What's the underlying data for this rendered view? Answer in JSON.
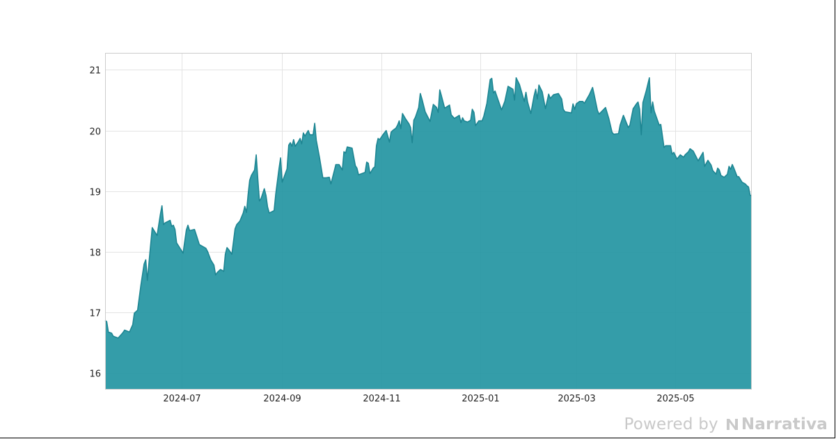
{
  "chart_data": {
    "type": "area",
    "title": "",
    "xlabel": "",
    "ylabel": "",
    "x_range": [
      "2024-05-15",
      "2025-06-17"
    ],
    "ylim": [
      15.73,
      21.28
    ],
    "x_ticks": [
      {
        "date": "2024-07-01",
        "label": "2024-07"
      },
      {
        "date": "2024-09-01",
        "label": "2024-09"
      },
      {
        "date": "2024-11-01",
        "label": "2024-11"
      },
      {
        "date": "2025-01-01",
        "label": "2025-01"
      },
      {
        "date": "2025-03-01",
        "label": "2025-03"
      },
      {
        "date": "2025-05-01",
        "label": "2025-05"
      }
    ],
    "y_ticks": [
      16,
      17,
      18,
      19,
      20,
      21
    ],
    "grid": true,
    "legend": "none",
    "colors": {
      "fill": "#2596a3",
      "line": "#1d8592"
    },
    "series": [
      {
        "points": [
          [
            "2024-05-15",
            16.87
          ],
          [
            "2024-05-16",
            16.85
          ],
          [
            "2024-05-17",
            16.68
          ],
          [
            "2024-05-19",
            16.66
          ],
          [
            "2024-05-20",
            16.61
          ],
          [
            "2024-05-23",
            16.58
          ],
          [
            "2024-05-26",
            16.67
          ],
          [
            "2024-05-27",
            16.71
          ],
          [
            "2024-05-28",
            16.7
          ],
          [
            "2024-05-30",
            16.68
          ],
          [
            "2024-06-01",
            16.8
          ],
          [
            "2024-06-02",
            16.99
          ],
          [
            "2024-06-04",
            17.04
          ],
          [
            "2024-06-06",
            17.45
          ],
          [
            "2024-06-08",
            17.8
          ],
          [
            "2024-06-09",
            17.87
          ],
          [
            "2024-06-10",
            17.53
          ],
          [
            "2024-06-11",
            17.82
          ],
          [
            "2024-06-13",
            18.4
          ],
          [
            "2024-06-16",
            18.27
          ],
          [
            "2024-06-18",
            18.62
          ],
          [
            "2024-06-19",
            18.76
          ],
          [
            "2024-06-20",
            18.45
          ],
          [
            "2024-06-21",
            18.48
          ],
          [
            "2024-06-24",
            18.52
          ],
          [
            "2024-06-25",
            18.42
          ],
          [
            "2024-06-26",
            18.44
          ],
          [
            "2024-06-27",
            18.37
          ],
          [
            "2024-06-28",
            18.15
          ],
          [
            "2024-07-02",
            17.98
          ],
          [
            "2024-07-04",
            18.36
          ],
          [
            "2024-07-05",
            18.44
          ],
          [
            "2024-07-06",
            18.35
          ],
          [
            "2024-07-09",
            18.37
          ],
          [
            "2024-07-10",
            18.29
          ],
          [
            "2024-07-12",
            18.12
          ],
          [
            "2024-07-14",
            18.09
          ],
          [
            "2024-07-16",
            18.06
          ],
          [
            "2024-07-17",
            18.01
          ],
          [
            "2024-07-19",
            17.87
          ],
          [
            "2024-07-21",
            17.78
          ],
          [
            "2024-07-22",
            17.62
          ],
          [
            "2024-07-23",
            17.66
          ],
          [
            "2024-07-25",
            17.71
          ],
          [
            "2024-07-27",
            17.68
          ],
          [
            "2024-07-28",
            17.96
          ],
          [
            "2024-07-29",
            18.07
          ],
          [
            "2024-07-30",
            18.04
          ],
          [
            "2024-08-01",
            17.96
          ],
          [
            "2024-08-03",
            18.38
          ],
          [
            "2024-08-04",
            18.45
          ],
          [
            "2024-08-06",
            18.51
          ],
          [
            "2024-08-08",
            18.64
          ],
          [
            "2024-08-09",
            18.75
          ],
          [
            "2024-08-10",
            18.65
          ],
          [
            "2024-08-11",
            18.94
          ],
          [
            "2024-08-12",
            19.18
          ],
          [
            "2024-08-13",
            19.26
          ],
          [
            "2024-08-15",
            19.35
          ],
          [
            "2024-08-16",
            19.6
          ],
          [
            "2024-08-17",
            19.2
          ],
          [
            "2024-08-18",
            18.84
          ],
          [
            "2024-08-19",
            18.88
          ],
          [
            "2024-08-20",
            18.96
          ],
          [
            "2024-08-21",
            19.04
          ],
          [
            "2024-08-22",
            18.93
          ],
          [
            "2024-08-23",
            18.74
          ],
          [
            "2024-08-24",
            18.64
          ],
          [
            "2024-08-27",
            18.68
          ],
          [
            "2024-08-28",
            18.95
          ],
          [
            "2024-08-30",
            19.37
          ],
          [
            "2024-08-31",
            19.55
          ],
          [
            "2024-09-01",
            19.15
          ],
          [
            "2024-09-04",
            19.37
          ],
          [
            "2024-09-05",
            19.76
          ],
          [
            "2024-09-06",
            19.8
          ],
          [
            "2024-09-07",
            19.74
          ],
          [
            "2024-09-08",
            19.85
          ],
          [
            "2024-09-09",
            19.74
          ],
          [
            "2024-09-11",
            19.82
          ],
          [
            "2024-09-12",
            19.87
          ],
          [
            "2024-09-13",
            19.78
          ],
          [
            "2024-09-14",
            19.96
          ],
          [
            "2024-09-15",
            19.91
          ],
          [
            "2024-09-17",
            20.0
          ],
          [
            "2024-09-18",
            19.93
          ],
          [
            "2024-09-20",
            19.93
          ],
          [
            "2024-09-21",
            20.12
          ],
          [
            "2024-09-22",
            19.84
          ],
          [
            "2024-09-24",
            19.55
          ],
          [
            "2024-09-26",
            19.22
          ],
          [
            "2024-09-28",
            19.22
          ],
          [
            "2024-09-30",
            19.23
          ],
          [
            "2024-10-01",
            19.12
          ],
          [
            "2024-10-03",
            19.33
          ],
          [
            "2024-10-04",
            19.44
          ],
          [
            "2024-10-06",
            19.44
          ],
          [
            "2024-10-08",
            19.35
          ],
          [
            "2024-10-09",
            19.65
          ],
          [
            "2024-10-10",
            19.63
          ],
          [
            "2024-10-11",
            19.73
          ],
          [
            "2024-10-14",
            19.71
          ],
          [
            "2024-10-16",
            19.42
          ],
          [
            "2024-10-17",
            19.38
          ],
          [
            "2024-10-18",
            19.27
          ],
          [
            "2024-10-20",
            19.29
          ],
          [
            "2024-10-22",
            19.31
          ],
          [
            "2024-10-23",
            19.48
          ],
          [
            "2024-10-24",
            19.46
          ],
          [
            "2024-10-25",
            19.29
          ],
          [
            "2024-10-27",
            19.38
          ],
          [
            "2024-10-28",
            19.4
          ],
          [
            "2024-10-29",
            19.75
          ],
          [
            "2024-10-30",
            19.87
          ],
          [
            "2024-10-31",
            19.85
          ],
          [
            "2024-11-02",
            19.93
          ],
          [
            "2024-11-04",
            20.0
          ],
          [
            "2024-11-06",
            19.81
          ],
          [
            "2024-11-07",
            19.97
          ],
          [
            "2024-11-08",
            20.0
          ],
          [
            "2024-11-10",
            20.04
          ],
          [
            "2024-11-11",
            20.09
          ],
          [
            "2024-11-12",
            20.16
          ],
          [
            "2024-11-13",
            20.03
          ],
          [
            "2024-11-14",
            20.28
          ],
          [
            "2024-11-16",
            20.19
          ],
          [
            "2024-11-18",
            20.11
          ],
          [
            "2024-11-19",
            20.05
          ],
          [
            "2024-11-20",
            19.8
          ],
          [
            "2024-11-21",
            20.17
          ],
          [
            "2024-11-22",
            20.22
          ],
          [
            "2024-11-24",
            20.38
          ],
          [
            "2024-11-25",
            20.61
          ],
          [
            "2024-11-26",
            20.52
          ],
          [
            "2024-11-28",
            20.31
          ],
          [
            "2024-12-01",
            20.15
          ],
          [
            "2024-12-03",
            20.43
          ],
          [
            "2024-12-05",
            20.38
          ],
          [
            "2024-12-06",
            20.3
          ],
          [
            "2024-12-07",
            20.67
          ],
          [
            "2024-12-08",
            20.57
          ],
          [
            "2024-12-10",
            20.37
          ],
          [
            "2024-12-13",
            20.42
          ],
          [
            "2024-12-14",
            20.26
          ],
          [
            "2024-12-16",
            20.2
          ],
          [
            "2024-12-19",
            20.25
          ],
          [
            "2024-12-20",
            20.13
          ],
          [
            "2024-12-21",
            20.21
          ],
          [
            "2024-12-22",
            20.16
          ],
          [
            "2024-12-24",
            20.14
          ],
          [
            "2024-12-26",
            20.17
          ],
          [
            "2024-12-27",
            20.35
          ],
          [
            "2024-12-28",
            20.3
          ],
          [
            "2024-12-29",
            20.08
          ],
          [
            "2024-12-31",
            20.16
          ],
          [
            "2025-01-02",
            20.16
          ],
          [
            "2025-01-03",
            20.23
          ],
          [
            "2025-01-05",
            20.45
          ],
          [
            "2025-01-06",
            20.65
          ],
          [
            "2025-01-07",
            20.84
          ],
          [
            "2025-01-08",
            20.86
          ],
          [
            "2025-01-09",
            20.62
          ],
          [
            "2025-01-10",
            20.65
          ],
          [
            "2025-01-14",
            20.34
          ],
          [
            "2025-01-16",
            20.48
          ],
          [
            "2025-01-18",
            20.73
          ],
          [
            "2025-01-21",
            20.68
          ],
          [
            "2025-01-22",
            20.5
          ],
          [
            "2025-01-23",
            20.87
          ],
          [
            "2025-01-25",
            20.76
          ],
          [
            "2025-01-28",
            20.48
          ],
          [
            "2025-01-29",
            20.63
          ],
          [
            "2025-01-30",
            20.47
          ],
          [
            "2025-02-01",
            20.28
          ],
          [
            "2025-02-03",
            20.57
          ],
          [
            "2025-02-04",
            20.68
          ],
          [
            "2025-02-05",
            20.52
          ],
          [
            "2025-02-06",
            20.75
          ],
          [
            "2025-02-08",
            20.64
          ],
          [
            "2025-02-10",
            20.36
          ],
          [
            "2025-02-12",
            20.6
          ],
          [
            "2025-02-13",
            20.53
          ],
          [
            "2025-02-15",
            20.59
          ],
          [
            "2025-02-18",
            20.61
          ],
          [
            "2025-02-20",
            20.52
          ],
          [
            "2025-02-21",
            20.35
          ],
          [
            "2025-02-22",
            20.31
          ],
          [
            "2025-02-26",
            20.29
          ],
          [
            "2025-02-27",
            20.44
          ],
          [
            "2025-02-28",
            20.35
          ],
          [
            "2025-03-01",
            20.44
          ],
          [
            "2025-03-03",
            20.48
          ],
          [
            "2025-03-05",
            20.48
          ],
          [
            "2025-03-06",
            20.45
          ],
          [
            "2025-03-09",
            20.59
          ],
          [
            "2025-03-11",
            20.71
          ],
          [
            "2025-03-12",
            20.59
          ],
          [
            "2025-03-14",
            20.33
          ],
          [
            "2025-03-15",
            20.27
          ],
          [
            "2025-03-19",
            20.38
          ],
          [
            "2025-03-21",
            20.2
          ],
          [
            "2025-03-23",
            19.97
          ],
          [
            "2025-03-24",
            19.94
          ],
          [
            "2025-03-27",
            19.95
          ],
          [
            "2025-03-28",
            20.09
          ],
          [
            "2025-03-30",
            20.25
          ],
          [
            "2025-04-02",
            20.05
          ],
          [
            "2025-04-03",
            20.09
          ],
          [
            "2025-04-05",
            20.36
          ],
          [
            "2025-04-07",
            20.44
          ],
          [
            "2025-04-08",
            20.47
          ],
          [
            "2025-04-09",
            20.35
          ],
          [
            "2025-04-10",
            19.93
          ],
          [
            "2025-04-11",
            20.46
          ],
          [
            "2025-04-13",
            20.65
          ],
          [
            "2025-04-15",
            20.87
          ],
          [
            "2025-04-16",
            20.29
          ],
          [
            "2025-04-17",
            20.47
          ],
          [
            "2025-04-18",
            20.32
          ],
          [
            "2025-04-21",
            20.09
          ],
          [
            "2025-04-22",
            20.1
          ],
          [
            "2025-04-24",
            19.72
          ],
          [
            "2025-04-25",
            19.75
          ],
          [
            "2025-04-28",
            19.75
          ],
          [
            "2025-04-29",
            19.61
          ],
          [
            "2025-04-30",
            19.64
          ],
          [
            "2025-05-02",
            19.53
          ],
          [
            "2025-05-04",
            19.6
          ],
          [
            "2025-05-06",
            19.56
          ],
          [
            "2025-05-07",
            19.6
          ],
          [
            "2025-05-09",
            19.65
          ],
          [
            "2025-05-10",
            19.7
          ],
          [
            "2025-05-12",
            19.66
          ],
          [
            "2025-05-15",
            19.5
          ],
          [
            "2025-05-18",
            19.64
          ],
          [
            "2025-05-19",
            19.41
          ],
          [
            "2025-05-21",
            19.51
          ],
          [
            "2025-05-23",
            19.43
          ],
          [
            "2025-05-24",
            19.34
          ],
          [
            "2025-05-26",
            19.28
          ],
          [
            "2025-05-27",
            19.38
          ],
          [
            "2025-05-28",
            19.35
          ],
          [
            "2025-05-29",
            19.26
          ],
          [
            "2025-05-31",
            19.23
          ],
          [
            "2025-06-02",
            19.28
          ],
          [
            "2025-06-03",
            19.41
          ],
          [
            "2025-06-04",
            19.36
          ],
          [
            "2025-06-05",
            19.44
          ],
          [
            "2025-06-06",
            19.38
          ],
          [
            "2025-06-08",
            19.24
          ],
          [
            "2025-06-09",
            19.24
          ],
          [
            "2025-06-11",
            19.15
          ],
          [
            "2025-06-13",
            19.12
          ],
          [
            "2025-06-14",
            19.09
          ],
          [
            "2025-06-15",
            19.07
          ],
          [
            "2025-06-16",
            18.93
          ],
          [
            "2025-06-17",
            18.93
          ]
        ]
      }
    ]
  },
  "watermark": {
    "powered_by": "Powered by",
    "brand": "Narrativa"
  }
}
